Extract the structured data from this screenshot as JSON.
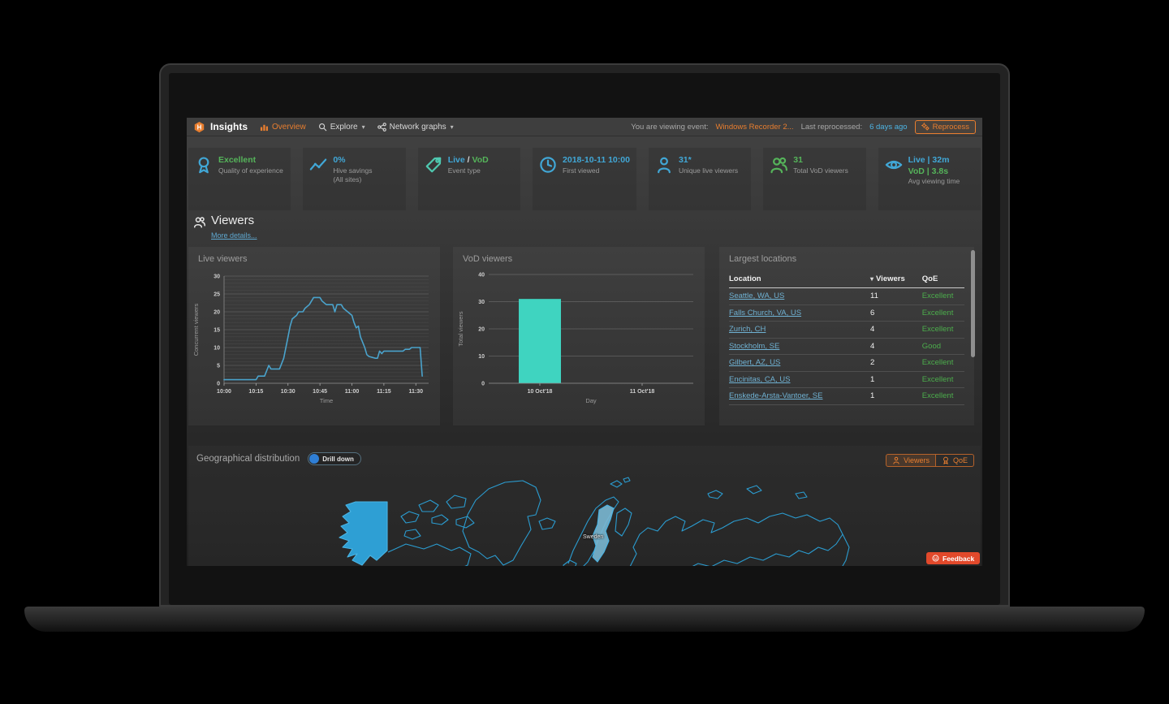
{
  "colors": {
    "accent_orange": "#e87e2f",
    "blue": "#41a7d6",
    "green": "#55b45a",
    "teal": "#3fd4c0",
    "line_blue": "#4aa3cc",
    "link_blue": "#6fb1d2",
    "feedback_red": "#e2492b"
  },
  "navbar": {
    "brand": "Insights",
    "items": [
      {
        "label": "Overview",
        "icon": "bars",
        "active": true,
        "caret": false
      },
      {
        "label": "Explore",
        "icon": "search",
        "active": false,
        "caret": true
      },
      {
        "label": "Network graphs",
        "icon": "share",
        "active": false,
        "caret": true
      }
    ],
    "viewing_prefix": "You are viewing event:",
    "viewing_event": "Windows Recorder 2...",
    "reprocessed_prefix": "Last reprocessed:",
    "reprocessed_value": "6 days ago",
    "reprocess_label": "Reprocess"
  },
  "kpis": [
    {
      "icon": "award",
      "icon_color": "#41a7d6",
      "value_lines": [
        [
          {
            "t": "Excellent",
            "c": "#55b45a"
          }
        ]
      ],
      "sub": [
        "Quality of experience"
      ]
    },
    {
      "icon": "trend",
      "icon_color": "#41a7d6",
      "value_lines": [
        [
          {
            "t": "0%",
            "c": "#41a7d6"
          }
        ]
      ],
      "sub": [
        "Hive savings",
        "(All sites)"
      ]
    },
    {
      "icon": "tag",
      "icon_color": "#4fc9b0",
      "value_lines": [
        [
          {
            "t": "Live",
            "c": "#41a7d6"
          },
          {
            "t": " / ",
            "c": "#d8d8d8"
          },
          {
            "t": "VoD",
            "c": "#55b45a"
          }
        ]
      ],
      "sub": [
        "Event type"
      ]
    },
    {
      "icon": "clock",
      "icon_color": "#41a7d6",
      "value_lines": [
        [
          {
            "t": "2018-10-11 10:00",
            "c": "#41a7d6"
          }
        ]
      ],
      "sub": [
        "First viewed"
      ]
    },
    {
      "icon": "person",
      "icon_color": "#41a7d6",
      "value_lines": [
        [
          {
            "t": "31*",
            "c": "#41a7d6"
          }
        ]
      ],
      "sub": [
        "Unique live viewers"
      ]
    },
    {
      "icon": "people",
      "icon_color": "#55b45a",
      "value_lines": [
        [
          {
            "t": "31",
            "c": "#55b45a"
          }
        ]
      ],
      "sub": [
        "Total VoD viewers"
      ]
    },
    {
      "icon": "eye",
      "icon_color": "#41a7d6",
      "value_lines": [
        [
          {
            "t": "Live | 32m",
            "c": "#41a7d6"
          }
        ],
        [
          {
            "t": "VoD | 3.8s",
            "c": "#55b45a"
          }
        ]
      ],
      "sub": [
        "Avg viewing time"
      ]
    }
  ],
  "viewers_section": {
    "title": "Viewers",
    "more_link": "More details..."
  },
  "panels": {
    "live": {
      "title": "Live viewers"
    },
    "vod": {
      "title": "VoD viewers"
    },
    "locations": {
      "title": "Largest locations",
      "columns": [
        "Location",
        "Viewers",
        "QoE"
      ],
      "rows": [
        {
          "location": "Seattle, WA, US",
          "viewers": "11",
          "qoe": "Excellent"
        },
        {
          "location": "Falls Church, VA, US",
          "viewers": "6",
          "qoe": "Excellent"
        },
        {
          "location": "Zurich, CH",
          "viewers": "4",
          "qoe": "Excellent"
        },
        {
          "location": "Stockholm, SE",
          "viewers": "4",
          "qoe": "Good"
        },
        {
          "location": "Gilbert, AZ, US",
          "viewers": "2",
          "qoe": "Excellent"
        },
        {
          "location": "Encinitas, CA, US",
          "viewers": "1",
          "qoe": "Excellent"
        },
        {
          "location": "Enskede-Arsta-Vantoer, SE",
          "viewers": "1",
          "qoe": "Excellent"
        }
      ]
    }
  },
  "chart_data": [
    {
      "type": "line",
      "title": "Live viewers",
      "xlabel": "Time",
      "ylabel": "Concurrent viewers",
      "ylim": [
        0,
        30
      ],
      "yticks": [
        0,
        5,
        10,
        15,
        20,
        25,
        30
      ],
      "minor_grid_step": 1,
      "grid": true,
      "xmax_minutes": 96,
      "xticks": [
        {
          "m": 0,
          "label": "10:00"
        },
        {
          "m": 15,
          "label": "10:15"
        },
        {
          "m": 30,
          "label": "10:30"
        },
        {
          "m": 45,
          "label": "10:45"
        },
        {
          "m": 60,
          "label": "11:00"
        },
        {
          "m": 75,
          "label": "11:15"
        },
        {
          "m": 90,
          "label": "11:30"
        }
      ],
      "color": "#4aa3cc",
      "points": [
        [
          0,
          1
        ],
        [
          15,
          1
        ],
        [
          16,
          2
        ],
        [
          19,
          2
        ],
        [
          21,
          5
        ],
        [
          22,
          4
        ],
        [
          26,
          4
        ],
        [
          28,
          7
        ],
        [
          30,
          13
        ],
        [
          31,
          16
        ],
        [
          32,
          18
        ],
        [
          34,
          19
        ],
        [
          35,
          20
        ],
        [
          37,
          20
        ],
        [
          38,
          21
        ],
        [
          40,
          22
        ],
        [
          42,
          24
        ],
        [
          45,
          24
        ],
        [
          46,
          23
        ],
        [
          47,
          22.5
        ],
        [
          48,
          22
        ],
        [
          51,
          22
        ],
        [
          52,
          20
        ],
        [
          53,
          22
        ],
        [
          55,
          22
        ],
        [
          56,
          21
        ],
        [
          58,
          20
        ],
        [
          60,
          19
        ],
        [
          61,
          17
        ],
        [
          62,
          15.5
        ],
        [
          63,
          16
        ],
        [
          64,
          13
        ],
        [
          66,
          10
        ],
        [
          67,
          8
        ],
        [
          68,
          7.5
        ],
        [
          71,
          7
        ],
        [
          72,
          7
        ],
        [
          73,
          9
        ],
        [
          74,
          8.3
        ],
        [
          75,
          9
        ],
        [
          84,
          9
        ],
        [
          85,
          9.5
        ],
        [
          87,
          9.5
        ],
        [
          88,
          10
        ],
        [
          92,
          10
        ],
        [
          93,
          2
        ]
      ]
    },
    {
      "type": "bar",
      "title": "VoD viewers",
      "xlabel": "Day",
      "ylabel": "Total viewers",
      "ylim": [
        0,
        40
      ],
      "yticks": [
        0,
        10,
        20,
        30,
        40
      ],
      "grid": true,
      "categories": [
        "10 Oct'18",
        "11 Oct'18"
      ],
      "values": [
        31,
        0
      ],
      "color": "#3fd4c0"
    }
  ],
  "geo": {
    "title": "Geographical distribution",
    "toggle_label": "Drill down",
    "buttons": [
      {
        "label": "Viewers",
        "active": true
      },
      {
        "label": "QoE",
        "active": false
      }
    ],
    "map_label": "Sweden"
  },
  "feedback_label": "Feedback"
}
